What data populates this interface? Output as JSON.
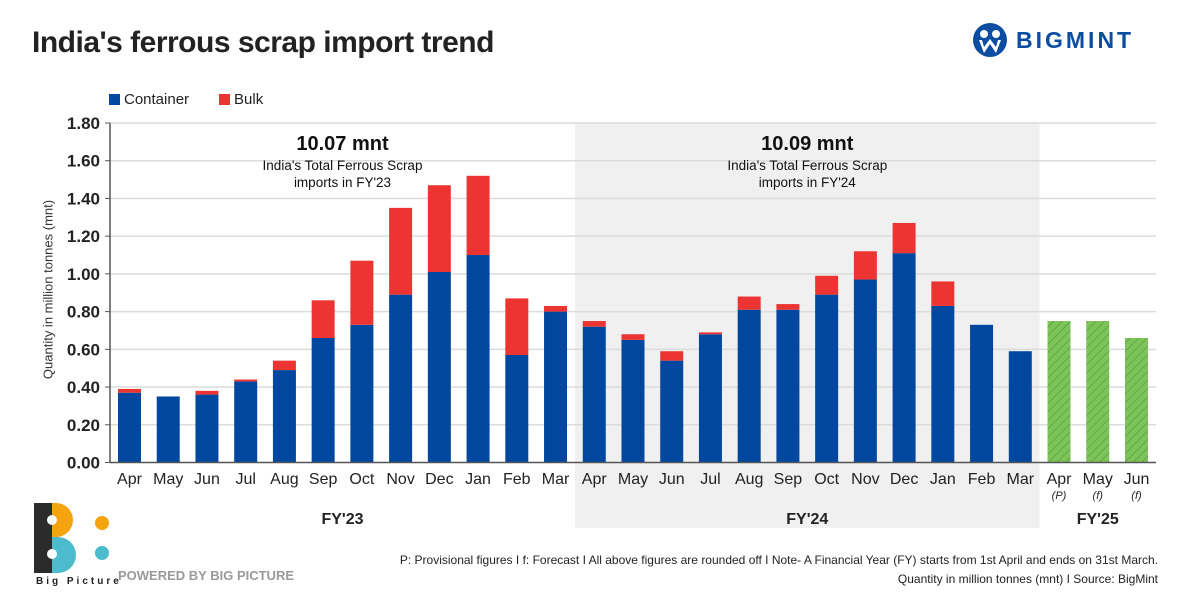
{
  "header": {
    "title": "India's ferrous scrap import trend",
    "brand": "BIGMINT"
  },
  "colors": {
    "container": "#0047a0",
    "bulk": "#ec3532",
    "forecast": "#7cc35a",
    "band": "#f0f0f0",
    "brand": "#0c4da2"
  },
  "chart_data": {
    "type": "bar",
    "stacked": true,
    "title": "India's ferrous scrap import trend",
    "xlabel": "",
    "ylabel": "Quantity in million tonnes (mnt)",
    "ylim": [
      0,
      1.8
    ],
    "yticks": [
      "0.00",
      "0.20",
      "0.40",
      "0.60",
      "0.80",
      "1.00",
      "1.20",
      "1.40",
      "1.60",
      "1.80"
    ],
    "grid": true,
    "legend": {
      "placement": "top-left",
      "entries": [
        "Container",
        "Bulk"
      ]
    },
    "categories": [
      "Apr",
      "May",
      "Jun",
      "Jul",
      "Aug",
      "Sep",
      "Oct",
      "Nov",
      "Dec",
      "Jan",
      "Feb",
      "Mar",
      "Apr",
      "May",
      "Jun",
      "Jul",
      "Aug",
      "Sep",
      "Oct",
      "Nov",
      "Dec",
      "Jan",
      "Feb",
      "Mar",
      "Apr",
      "May",
      "Jun"
    ],
    "category_notes": [
      "",
      "",
      "",
      "",
      "",
      "",
      "",
      "",
      "",
      "",
      "",
      "",
      "",
      "",
      "",
      "",
      "",
      "",
      "",
      "",
      "",
      "",
      "",
      "",
      "(P)",
      "(f)",
      "(f)"
    ],
    "series": [
      {
        "name": "Container",
        "values": [
          0.37,
          0.35,
          0.36,
          0.43,
          0.49,
          0.66,
          0.73,
          0.89,
          1.01,
          1.1,
          0.57,
          0.8,
          0.72,
          0.65,
          0.54,
          0.68,
          0.81,
          0.81,
          0.89,
          0.97,
          1.11,
          0.83,
          0.73,
          0.59,
          null,
          null,
          null
        ]
      },
      {
        "name": "Bulk",
        "values": [
          0.02,
          0.0,
          0.02,
          0.01,
          0.05,
          0.2,
          0.34,
          0.46,
          0.46,
          0.42,
          0.3,
          0.03,
          0.03,
          0.03,
          0.05,
          0.01,
          0.07,
          0.03,
          0.1,
          0.15,
          0.16,
          0.13,
          0.0,
          0.0,
          null,
          null,
          null
        ]
      },
      {
        "name": "FY'25 (provisional/forecast)",
        "values": [
          null,
          null,
          null,
          null,
          null,
          null,
          null,
          null,
          null,
          null,
          null,
          null,
          null,
          null,
          null,
          null,
          null,
          null,
          null,
          null,
          null,
          null,
          null,
          null,
          0.75,
          0.75,
          0.66
        ]
      }
    ],
    "groups": [
      {
        "label": "FY'23",
        "start": 0,
        "end": 11,
        "annotation_value": "10.07 mnt",
        "annotation_text1": "India's Total Ferrous Scrap",
        "annotation_text2": "imports in FY'23",
        "shaded": false
      },
      {
        "label": "FY'24",
        "start": 12,
        "end": 23,
        "annotation_value": "10.09 mnt",
        "annotation_text1": "India's Total Ferrous Scrap",
        "annotation_text2": "imports in FY'24",
        "shaded": true
      },
      {
        "label": "FY'25",
        "start": 24,
        "end": 26,
        "shaded": false
      }
    ]
  },
  "footer": {
    "powered_by": "POWERED BY BIG PICTURE",
    "bp_name": "Big Picture",
    "note": "P: Provisional figures  I  f: Forecast  I  All above figures are rounded off  I  Note- A Financial Year (FY) starts from 1st April and ends on 31st March.",
    "source": "Quantity in million tonnes (mnt)  I  Source: BigMint"
  }
}
